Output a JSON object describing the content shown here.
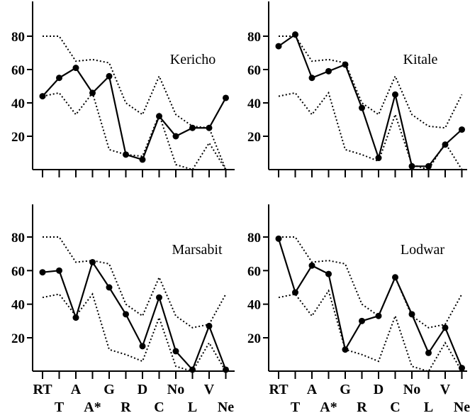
{
  "chart_data": [
    {
      "type": "line",
      "title": "Kericho",
      "categories": [
        "RT",
        "T",
        "A",
        "A*",
        "G",
        "R",
        "D",
        "C",
        "No",
        "L",
        "V",
        "Ne"
      ],
      "ylim": [
        0,
        100
      ],
      "yticks": [
        20,
        40,
        60,
        80
      ],
      "series": [
        {
          "values": [
            44,
            55,
            61,
            46,
            56,
            9,
            6,
            32,
            20,
            25,
            25,
            43
          ]
        }
      ],
      "upper_band": [
        80,
        80,
        65,
        66,
        64,
        40,
        33,
        56,
        33,
        26,
        25,
        0
      ],
      "lower_band": [
        44,
        46,
        33,
        46,
        12,
        9,
        8,
        33,
        3,
        0,
        16,
        0
      ]
    },
    {
      "type": "line",
      "title": "Kitale",
      "categories": [
        "RT",
        "T",
        "A",
        "A*",
        "G",
        "R",
        "D",
        "C",
        "No",
        "L",
        "V",
        "Ne"
      ],
      "ylim": [
        0,
        100
      ],
      "yticks": [
        20,
        40,
        60,
        80
      ],
      "series": [
        {
          "values": [
            74,
            81,
            55,
            59,
            63,
            37,
            7,
            45,
            2,
            2,
            15,
            24
          ]
        }
      ],
      "upper_band": [
        80,
        80,
        65,
        66,
        64,
        40,
        33,
        56,
        33,
        26,
        25,
        45
      ],
      "lower_band": [
        44,
        46,
        33,
        46,
        12,
        9,
        5,
        33,
        3,
        0,
        16,
        0
      ]
    },
    {
      "type": "line",
      "title": "Marsabit",
      "categories": [
        "RT",
        "T",
        "A",
        "A*",
        "G",
        "R",
        "D",
        "C",
        "No",
        "L",
        "V",
        "Ne"
      ],
      "ylim": [
        0,
        100
      ],
      "yticks": [
        20,
        40,
        60,
        80
      ],
      "series": [
        {
          "values": [
            59,
            60,
            32,
            65,
            50,
            34,
            15,
            44,
            12,
            1,
            27,
            1
          ]
        }
      ],
      "upper_band": [
        80,
        80,
        65,
        66,
        64,
        40,
        33,
        56,
        33,
        26,
        28,
        46
      ],
      "lower_band": [
        44,
        46,
        33,
        46,
        13,
        10,
        6,
        32,
        3,
        0,
        17,
        0
      ]
    },
    {
      "type": "line",
      "title": "Lodwar",
      "categories": [
        "RT",
        "T",
        "A",
        "A*",
        "G",
        "R",
        "D",
        "C",
        "No",
        "L",
        "V",
        "Ne"
      ],
      "ylim": [
        0,
        100
      ],
      "yticks": [
        20,
        40,
        60,
        80
      ],
      "series": [
        {
          "values": [
            79,
            47,
            63,
            58,
            13,
            30,
            33,
            56,
            34,
            11,
            26,
            2
          ]
        }
      ],
      "upper_band": [
        80,
        80,
        65,
        66,
        64,
        40,
        33,
        56,
        33,
        26,
        28,
        46
      ],
      "lower_band": [
        44,
        46,
        33,
        48,
        13,
        10,
        6,
        33,
        3,
        0,
        17,
        0
      ]
    }
  ],
  "axis": {
    "xlabels_top": [
      "RT",
      "A",
      "G",
      "D",
      "No",
      "V"
    ],
    "xlabels_bottom": [
      "T",
      "A*",
      "R",
      "C",
      "L",
      "Ne"
    ]
  }
}
